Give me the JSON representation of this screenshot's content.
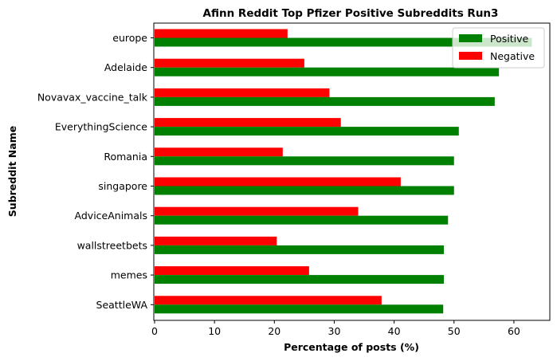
{
  "chart_data": {
    "type": "bar",
    "orientation": "horizontal",
    "title": "Afinn Reddit Top Pfizer Positive Subreddits Run3",
    "xlabel": "Percentage of posts (%)",
    "ylabel": "Subreddit Name",
    "xlim": [
      0,
      66
    ],
    "xticks": [
      "0",
      "10",
      "20",
      "30",
      "40",
      "50",
      "60"
    ],
    "categories": [
      "europe",
      "Adelaide",
      "Novavax_vaccine_talk",
      "EverythingScience",
      "Romania",
      "singapore",
      "AdviceAnimals",
      "wallstreetbets",
      "memes",
      "SeattleWA"
    ],
    "series": [
      {
        "name": "Positive",
        "color": "#008000",
        "values": [
          63.0,
          57.5,
          56.8,
          50.8,
          50.0,
          50.0,
          49.0,
          48.3,
          48.3,
          48.2
        ]
      },
      {
        "name": "Negative",
        "color": "#ff0000",
        "values": [
          22.2,
          25.0,
          29.2,
          31.1,
          21.4,
          41.1,
          34.0,
          20.4,
          25.8,
          37.9
        ]
      }
    ],
    "legend_position": "top-right",
    "grid": false
  }
}
